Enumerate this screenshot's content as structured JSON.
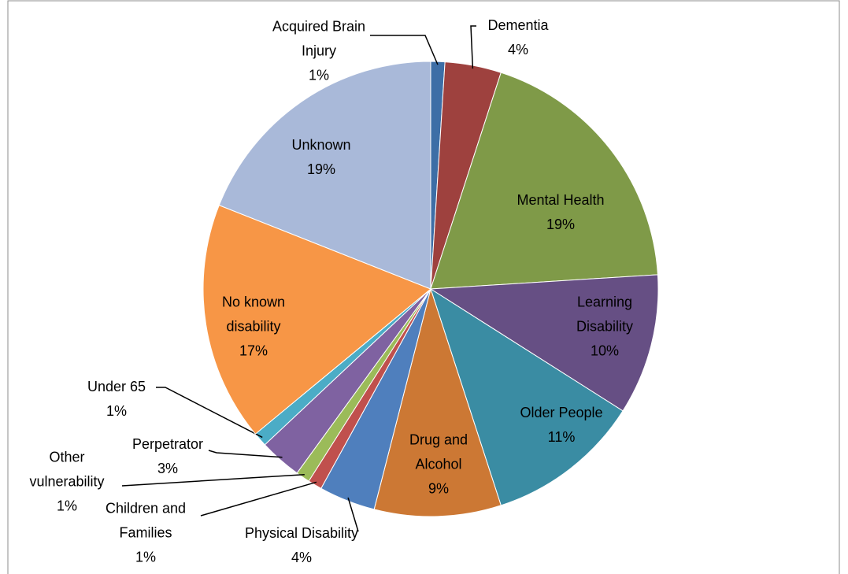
{
  "chart_data": {
    "type": "pie",
    "categories": [
      "Acquired Brain Injury",
      "Dementia",
      "Mental Health",
      "Learning Disability",
      "Older People",
      "Drug and Alcohol",
      "Physical Disability",
      "Children and Families",
      "Other vulnerability",
      "Perpetrator",
      "Under 65",
      "No known disability",
      "Unknown"
    ],
    "values": [
      1,
      4,
      19,
      10,
      11,
      9,
      4,
      1,
      1,
      3,
      1,
      17,
      19
    ],
    "value_labels": [
      "1%",
      "4%",
      "19%",
      "10%",
      "11%",
      "9%",
      "4%",
      "1%",
      "1%",
      "3%",
      "1%",
      "17%",
      "19%"
    ],
    "colors": [
      "#3d6ea6",
      "#9e413e",
      "#7f9a48",
      "#664f84",
      "#3a8ca3",
      "#cc7834",
      "#4f7fbd",
      "#c0504d",
      "#9bbb59",
      "#7f62a1",
      "#4bacc6",
      "#f79646",
      "#a9b9d9"
    ]
  }
}
